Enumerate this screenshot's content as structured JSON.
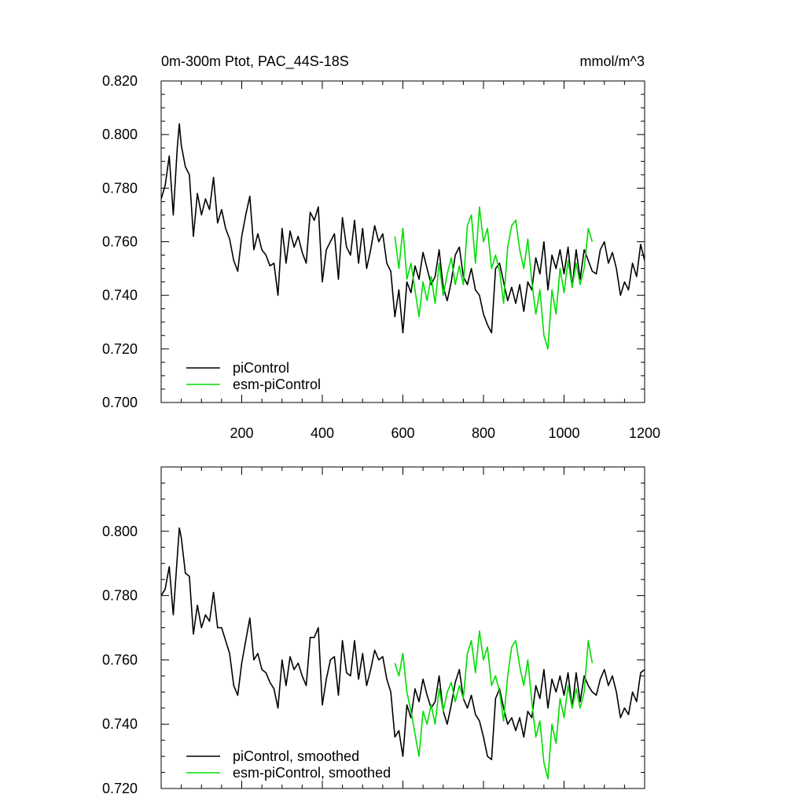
{
  "chart_data": [
    {
      "type": "line",
      "title_left": "0m-300m Ptot, PAC_44S-18S",
      "title_right": "mmol/m^3",
      "xlabel": "",
      "ylabel": "",
      "xlim": [
        0,
        1200
      ],
      "ylim": [
        0.7,
        0.82
      ],
      "x_ticks": [
        200,
        400,
        600,
        800,
        1000,
        1200
      ],
      "x_tick_labels": [
        "200",
        "400",
        "600",
        "800",
        "1000",
        "1200"
      ],
      "y_ticks": [
        0.7,
        0.72,
        0.74,
        0.76,
        0.78,
        0.8,
        0.82
      ],
      "y_tick_labels": [
        "0.700",
        "0.720",
        "0.740",
        "0.760",
        "0.780",
        "0.800",
        "0.820"
      ],
      "grid": false,
      "legend_position": "bottom-left",
      "series": [
        {
          "name": "piControl",
          "color": "#000000",
          "x": [
            0,
            10,
            20,
            30,
            40,
            45,
            50,
            60,
            70,
            80,
            90,
            100,
            110,
            120,
            130,
            140,
            150,
            160,
            170,
            180,
            190,
            200,
            210,
            220,
            230,
            240,
            250,
            260,
            270,
            280,
            290,
            300,
            310,
            320,
            330,
            340,
            350,
            360,
            370,
            380,
            390,
            400,
            410,
            420,
            430,
            440,
            450,
            460,
            470,
            480,
            490,
            500,
            510,
            520,
            530,
            540,
            550,
            560,
            570,
            580,
            590,
            600,
            610,
            620,
            630,
            640,
            650,
            660,
            670,
            680,
            690,
            700,
            710,
            720,
            730,
            740,
            750,
            760,
            770,
            780,
            790,
            800,
            810,
            820,
            830,
            840,
            850,
            860,
            870,
            880,
            890,
            900,
            910,
            920,
            930,
            940,
            950,
            960,
            970,
            980,
            990,
            1000,
            1010,
            1020,
            1030,
            1040,
            1050,
            1060,
            1070,
            1080,
            1090,
            1100,
            1110,
            1120,
            1130,
            1140,
            1150,
            1160,
            1170,
            1180,
            1190,
            1200
          ],
          "values": [
            0.776,
            0.781,
            0.792,
            0.77,
            0.795,
            0.804,
            0.796,
            0.788,
            0.785,
            0.762,
            0.778,
            0.77,
            0.776,
            0.772,
            0.784,
            0.767,
            0.772,
            0.765,
            0.761,
            0.753,
            0.749,
            0.762,
            0.77,
            0.777,
            0.757,
            0.763,
            0.757,
            0.755,
            0.751,
            0.752,
            0.74,
            0.765,
            0.752,
            0.764,
            0.758,
            0.762,
            0.756,
            0.752,
            0.771,
            0.768,
            0.773,
            0.745,
            0.757,
            0.76,
            0.763,
            0.746,
            0.769,
            0.758,
            0.755,
            0.768,
            0.752,
            0.765,
            0.75,
            0.757,
            0.766,
            0.76,
            0.763,
            0.752,
            0.749,
            0.732,
            0.742,
            0.726,
            0.745,
            0.741,
            0.751,
            0.746,
            0.756,
            0.75,
            0.744,
            0.747,
            0.757,
            0.743,
            0.738,
            0.745,
            0.755,
            0.758,
            0.747,
            0.744,
            0.75,
            0.742,
            0.74,
            0.733,
            0.729,
            0.726,
            0.75,
            0.752,
            0.745,
            0.738,
            0.743,
            0.737,
            0.744,
            0.734,
            0.745,
            0.742,
            0.754,
            0.748,
            0.76,
            0.742,
            0.755,
            0.75,
            0.757,
            0.748,
            0.758,
            0.743,
            0.757,
            0.746,
            0.757,
            0.753,
            0.749,
            0.748,
            0.757,
            0.76,
            0.752,
            0.756,
            0.75,
            0.74,
            0.745,
            0.742,
            0.752,
            0.747,
            0.759,
            0.753
          ]
        },
        {
          "name": "esm-piControl",
          "color": "#00dd00",
          "x": [
            580,
            590,
            600,
            610,
            620,
            630,
            640,
            650,
            660,
            670,
            680,
            690,
            700,
            710,
            720,
            730,
            740,
            750,
            760,
            770,
            780,
            790,
            800,
            810,
            820,
            830,
            840,
            850,
            860,
            870,
            880,
            890,
            900,
            910,
            920,
            930,
            940,
            950,
            960,
            970,
            980,
            990,
            1000,
            1010,
            1020,
            1030,
            1040,
            1050,
            1060,
            1070
          ],
          "values": [
            0.762,
            0.75,
            0.765,
            0.746,
            0.752,
            0.742,
            0.732,
            0.745,
            0.738,
            0.747,
            0.737,
            0.752,
            0.74,
            0.748,
            0.754,
            0.744,
            0.751,
            0.744,
            0.766,
            0.77,
            0.752,
            0.773,
            0.76,
            0.765,
            0.75,
            0.755,
            0.749,
            0.737,
            0.758,
            0.766,
            0.768,
            0.757,
            0.75,
            0.761,
            0.745,
            0.733,
            0.742,
            0.725,
            0.72,
            0.742,
            0.733,
            0.75,
            0.741,
            0.753,
            0.743,
            0.752,
            0.744,
            0.75,
            0.765,
            0.76
          ]
        }
      ]
    },
    {
      "type": "line",
      "xlabel": "",
      "ylabel": "",
      "xlim": [
        0,
        1200
      ],
      "ylim": [
        0.72,
        0.82
      ],
      "y_ticks": [
        0.72,
        0.74,
        0.76,
        0.78,
        0.8
      ],
      "y_tick_labels": [
        "0.720",
        "0.740",
        "0.760",
        "0.780",
        "0.800"
      ],
      "grid": false,
      "legend_position": "bottom-left",
      "series": [
        {
          "name": "piControl, smoothed",
          "color": "#000000",
          "x": [
            0,
            10,
            20,
            30,
            40,
            45,
            50,
            60,
            70,
            80,
            90,
            100,
            110,
            120,
            130,
            140,
            150,
            160,
            170,
            180,
            190,
            200,
            210,
            220,
            230,
            240,
            250,
            260,
            270,
            280,
            290,
            300,
            310,
            320,
            330,
            340,
            350,
            360,
            370,
            380,
            390,
            400,
            410,
            420,
            430,
            440,
            450,
            460,
            470,
            480,
            490,
            500,
            510,
            520,
            530,
            540,
            550,
            560,
            570,
            580,
            590,
            600,
            610,
            620,
            630,
            640,
            650,
            660,
            670,
            680,
            690,
            700,
            710,
            720,
            730,
            740,
            750,
            760,
            770,
            780,
            790,
            800,
            810,
            820,
            830,
            840,
            850,
            860,
            870,
            880,
            890,
            900,
            910,
            920,
            930,
            940,
            950,
            960,
            970,
            980,
            990,
            1000,
            1010,
            1020,
            1030,
            1040,
            1050,
            1060,
            1070,
            1080,
            1090,
            1100,
            1110,
            1120,
            1130,
            1140,
            1150,
            1160,
            1170,
            1180,
            1190,
            1200
          ],
          "values": [
            0.78,
            0.782,
            0.789,
            0.774,
            0.792,
            0.801,
            0.798,
            0.787,
            0.786,
            0.768,
            0.777,
            0.77,
            0.774,
            0.772,
            0.781,
            0.77,
            0.77,
            0.766,
            0.762,
            0.752,
            0.749,
            0.759,
            0.766,
            0.773,
            0.76,
            0.762,
            0.757,
            0.756,
            0.753,
            0.751,
            0.745,
            0.76,
            0.752,
            0.761,
            0.757,
            0.759,
            0.755,
            0.752,
            0.767,
            0.767,
            0.77,
            0.746,
            0.754,
            0.76,
            0.761,
            0.749,
            0.766,
            0.756,
            0.755,
            0.766,
            0.754,
            0.762,
            0.752,
            0.757,
            0.763,
            0.76,
            0.761,
            0.754,
            0.75,
            0.736,
            0.738,
            0.73,
            0.746,
            0.742,
            0.751,
            0.747,
            0.754,
            0.749,
            0.745,
            0.747,
            0.755,
            0.744,
            0.74,
            0.746,
            0.753,
            0.757,
            0.748,
            0.745,
            0.749,
            0.743,
            0.741,
            0.736,
            0.73,
            0.729,
            0.748,
            0.751,
            0.745,
            0.74,
            0.742,
            0.738,
            0.742,
            0.736,
            0.744,
            0.742,
            0.752,
            0.748,
            0.757,
            0.745,
            0.754,
            0.75,
            0.755,
            0.749,
            0.756,
            0.745,
            0.756,
            0.747,
            0.755,
            0.752,
            0.75,
            0.749,
            0.754,
            0.757,
            0.752,
            0.755,
            0.75,
            0.742,
            0.745,
            0.743,
            0.75,
            0.747,
            0.756,
            0.757
          ]
        },
        {
          "name": "esm-piControl, smoothed",
          "color": "#00dd00",
          "x": [
            580,
            590,
            600,
            610,
            620,
            630,
            640,
            650,
            660,
            670,
            680,
            690,
            700,
            710,
            720,
            730,
            740,
            750,
            760,
            770,
            780,
            790,
            800,
            810,
            820,
            830,
            840,
            850,
            860,
            870,
            880,
            890,
            900,
            910,
            920,
            930,
            940,
            950,
            960,
            970,
            980,
            990,
            1000,
            1010,
            1020,
            1030,
            1040,
            1050,
            1060,
            1070
          ],
          "values": [
            0.759,
            0.755,
            0.762,
            0.75,
            0.744,
            0.737,
            0.73,
            0.744,
            0.74,
            0.746,
            0.74,
            0.751,
            0.744,
            0.75,
            0.753,
            0.747,
            0.752,
            0.748,
            0.762,
            0.766,
            0.756,
            0.769,
            0.76,
            0.764,
            0.752,
            0.755,
            0.75,
            0.741,
            0.755,
            0.764,
            0.766,
            0.758,
            0.752,
            0.76,
            0.747,
            0.736,
            0.741,
            0.728,
            0.723,
            0.74,
            0.734,
            0.748,
            0.742,
            0.752,
            0.745,
            0.751,
            0.745,
            0.75,
            0.766,
            0.759
          ]
        }
      ]
    }
  ]
}
